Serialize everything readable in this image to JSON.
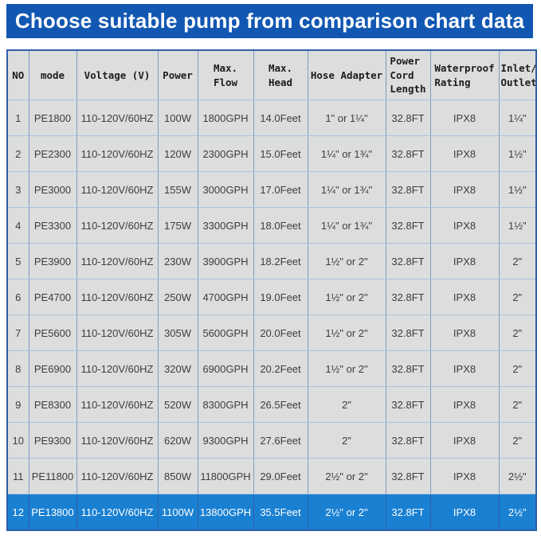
{
  "title": "Choose suitable pump from comparison chart data",
  "colors": {
    "title_bar_bg": "#1257b2",
    "title_text": "#ffffff",
    "cell_bg": "#dcdddd",
    "outer_border": "#2f5da8",
    "grid_vertical": "#7f9cc2",
    "grid_horizontal": "#aac1da",
    "body_text": "#3d3d3d",
    "header_text": "#1c1c1c",
    "highlight_row_bg": "#1a80d2",
    "highlight_row_text": "#ffffff"
  },
  "chart_data": {
    "type": "table",
    "title": "Choose suitable pump from comparison chart data",
    "columns": [
      "NO",
      "mode",
      "Voltage (V)",
      "Power",
      "Max.\nFlow",
      "Max.\nHead",
      "Hose Adapter",
      "Power\nCord\nLength",
      "Waterproof\nRating",
      "Inlet/\nOutlet"
    ],
    "rows": [
      [
        "1",
        "PE1800",
        "110-120V/60HZ",
        "100W",
        "1800GPH",
        "14.0Feet",
        "1\" or 1¼\"",
        "32.8FT",
        "IPX8",
        "1¼\""
      ],
      [
        "2",
        "PE2300",
        "110-120V/60HZ",
        "120W",
        "2300GPH",
        "15.0Feet",
        "1¼\" or 1¾\"",
        "32.8FT",
        "IPX8",
        "1½\""
      ],
      [
        "3",
        "PE3000",
        "110-120V/60HZ",
        "155W",
        "3000GPH",
        "17.0Feet",
        "1¼\" or 1¾\"",
        "32.8FT",
        "IPX8",
        "1½\""
      ],
      [
        "4",
        "PE3300",
        "110-120V/60HZ",
        "175W",
        "3300GPH",
        "18.0Feet",
        "1¼\" or 1¾\"",
        "32.8FT",
        "IPX8",
        "1½\""
      ],
      [
        "5",
        "PE3900",
        "110-120V/60HZ",
        "230W",
        "3900GPH",
        "18.2Feet",
        "1½\" or 2\"",
        "32.8FT",
        "IPX8",
        "2\""
      ],
      [
        "6",
        "PE4700",
        "110-120V/60HZ",
        "250W",
        "4700GPH",
        "19.0Feet",
        "1½\" or 2\"",
        "32.8FT",
        "IPX8",
        "2\""
      ],
      [
        "7",
        "PE5600",
        "110-120V/60HZ",
        "305W",
        "5600GPH",
        "20.0Feet",
        "1½\" or 2\"",
        "32.8FT",
        "IPX8",
        "2\""
      ],
      [
        "8",
        "PE6900",
        "110-120V/60HZ",
        "320W",
        "6900GPH",
        "20.2Feet",
        "1½\" or 2\"",
        "32.8FT",
        "IPX8",
        "2\""
      ],
      [
        "9",
        "PE8300",
        "110-120V/60HZ",
        "520W",
        "8300GPH",
        "26.5Feet",
        "2\"",
        "32.8FT",
        "IPX8",
        "2\""
      ],
      [
        "10",
        "PE9300",
        "110-120V/60HZ",
        "620W",
        "9300GPH",
        "27.6Feet",
        "2\"",
        "32.8FT",
        "IPX8",
        "2\""
      ],
      [
        "11",
        "PE11800",
        "110-120V/60HZ",
        "850W",
        "11800GPH",
        "29.0Feet",
        "2½\" or 2\"",
        "32.8FT",
        "IPX8",
        "2½\""
      ],
      [
        "12",
        "PE13800",
        "110-120V/60HZ",
        "1100W",
        "13800GPH",
        "35.5Feet",
        "2½\" or 2\"",
        "32.8FT",
        "IPX8",
        "2½\""
      ]
    ],
    "highlighted_row_no": "12",
    "layout": "grid on, no axes, header row on top"
  }
}
